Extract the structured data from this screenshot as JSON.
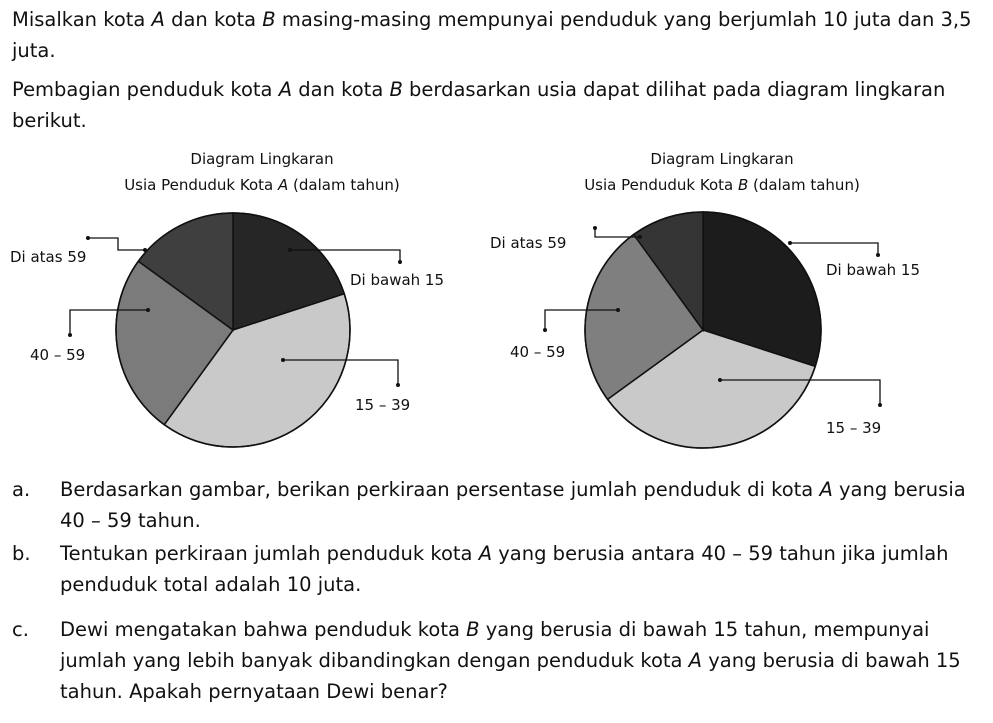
{
  "paragraphs": [
    [
      "Misalkan kota ",
      "A",
      " dan kota ",
      "B",
      " masing-masing mempunyai penduduk yang berjumlah 10 juta dan 3,5 juta."
    ],
    [
      "Pembagian penduduk kota ",
      "A",
      " dan kota ",
      "B",
      " berdasarkan usia dapat dilihat pada diagram lingkaran berikut."
    ]
  ],
  "chart_data": [
    {
      "type": "pie",
      "title": "Diagram Lingkaran",
      "subtitle": [
        "Usia Penduduk Kota ",
        "A",
        " (dalam tahun)"
      ],
      "categories": [
        "Di bawah 15",
        "15 – 39",
        "40 – 59",
        "Di atas 59"
      ],
      "values": [
        20,
        40,
        25,
        15
      ],
      "colors": [
        "#262626",
        "#c9c9c9",
        "#7b7b7b",
        "#3f3f3f"
      ]
    },
    {
      "type": "pie",
      "title": "Diagram Lingkaran",
      "subtitle": [
        "Usia Penduduk Kota ",
        "B",
        " (dalam tahun)"
      ],
      "categories": [
        "Di bawah 15",
        "15 – 39",
        "40 – 59",
        "Di atas 59"
      ],
      "values": [
        30,
        35,
        25,
        10
      ],
      "colors": [
        "#1c1c1c",
        "#c9c9c9",
        "#7f7f7f",
        "#353535"
      ]
    }
  ],
  "questions": [
    {
      "label": "a.",
      "text": [
        "Berdasarkan gambar, berikan perkiraan persentase jumlah penduduk di kota ",
        "A",
        " yang berusia 40 – 59 tahun."
      ]
    },
    {
      "label": "b.",
      "text": [
        "Tentukan perkiraan jumlah penduduk kota ",
        "A",
        " yang berusia antara 40 – 59 tahun jika jumlah penduduk total adalah 10 juta."
      ]
    },
    {
      "label": "c.",
      "text": [
        "Dewi mengatakan bahwa penduduk kota ",
        "B",
        " yang berusia di bawah 15 tahun, mempunyai jumlah yang lebih banyak dibandingkan dengan penduduk kota ",
        "A",
        " yang berusia di bawah 15 tahun. Apakah pernyataan Dewi benar?"
      ]
    }
  ]
}
